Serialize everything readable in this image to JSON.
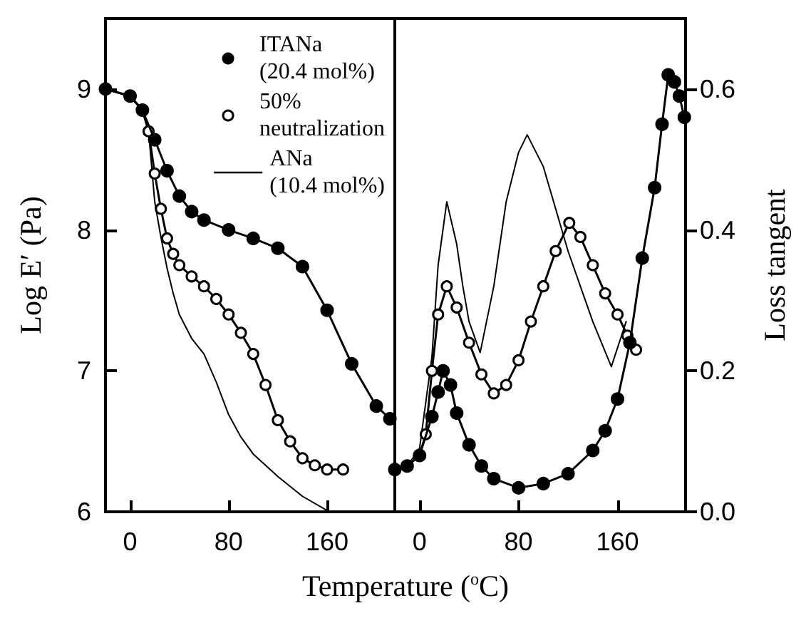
{
  "chart_data": [
    {
      "type": "line",
      "xlabel": "Temperature ($^{o}$C)",
      "ylabel": "Log E′ (Pa)",
      "xlim": [
        -20,
        215
      ],
      "xticks": [
        0,
        80,
        160
      ],
      "ylim": [
        6,
        9.5
      ],
      "yticks": [
        6,
        7,
        8,
        9
      ],
      "legend": "top right",
      "grid": false,
      "series": [
        {
          "name": "ITANa\n(20.4 mol%)",
          "color": "#000000",
          "marker": "circle",
          "x": [
            -20,
            0,
            10,
            20,
            30,
            40,
            50,
            60,
            80,
            100,
            120,
            140,
            160,
            180,
            200,
            211
          ],
          "values": [
            9.0,
            8.95,
            8.85,
            8.64,
            8.42,
            8.24,
            8.13,
            8.07,
            8.0,
            7.94,
            7.87,
            7.74,
            7.43,
            7.05,
            6.75,
            6.66
          ]
        },
        {
          "name": "50%\nneutralization",
          "color": "#ffffff",
          "marker": "circle",
          "x": [
            -20,
            0,
            10,
            15,
            20,
            25,
            30,
            35,
            40,
            50,
            60,
            70,
            80,
            90,
            100,
            110,
            120,
            130,
            140,
            150,
            160,
            173
          ],
          "values": [
            9.0,
            8.95,
            8.85,
            8.7,
            8.4,
            8.15,
            7.94,
            7.83,
            7.75,
            7.67,
            7.6,
            7.51,
            7.4,
            7.27,
            7.12,
            6.9,
            6.65,
            6.5,
            6.38,
            6.33,
            6.3,
            6.3
          ]
        },
        {
          "name": "ANa\n(10.4 mol%)",
          "color": "#000000",
          "marker": "none",
          "x": [
            -20,
            0,
            10,
            15,
            20,
            25,
            30,
            35,
            40,
            50,
            60,
            70,
            80,
            90,
            100,
            120,
            140,
            160
          ],
          "values": [
            9.0,
            8.95,
            8.85,
            8.7,
            8.2,
            7.95,
            7.73,
            7.55,
            7.4,
            7.23,
            7.12,
            6.92,
            6.69,
            6.53,
            6.41,
            6.25,
            6.11,
            6.01
          ]
        }
      ]
    },
    {
      "type": "line",
      "y2label": "Loss tangent",
      "xlim": [
        -20,
        215
      ],
      "xticks": [
        0,
        80,
        160
      ],
      "y2lim": [
        0,
        0.7
      ],
      "y2ticks": [
        {
          "value": 0,
          "label": "0.0"
        },
        {
          "value": 0.2,
          "label": "0.2"
        },
        {
          "value": 0.4,
          "label": "0.4"
        },
        {
          "value": 0.6,
          "label": "0.6"
        }
      ],
      "tick_labels": "x",
      "legend": false,
      "grid": false,
      "series": [
        {
          "color": "#000000",
          "marker": "circle",
          "axis": "y2",
          "x": [
            -20,
            -10,
            0,
            10,
            15,
            19,
            25,
            30,
            40,
            50,
            60,
            80,
            100,
            120,
            140,
            150,
            160,
            170,
            180,
            190,
            196,
            201,
            206,
            210,
            214
          ],
          "values": [
            0.06,
            0.065,
            0.08,
            0.135,
            0.17,
            0.2,
            0.18,
            0.14,
            0.095,
            0.065,
            0.047,
            0.034,
            0.04,
            0.054,
            0.087,
            0.115,
            0.16,
            0.24,
            0.36,
            0.46,
            0.55,
            0.62,
            0.61,
            0.59,
            0.56
          ]
        },
        {
          "color": "#ffffff",
          "marker": "circle",
          "axis": "y2",
          "x": [
            -20,
            -10,
            0,
            5,
            10,
            15,
            22,
            30,
            40,
            50,
            60,
            70,
            80,
            90,
            100,
            110,
            121,
            130,
            140,
            150,
            160,
            168,
            175
          ],
          "values": [
            0.06,
            0.065,
            0.08,
            0.11,
            0.2,
            0.28,
            0.32,
            0.29,
            0.24,
            0.195,
            0.168,
            0.18,
            0.215,
            0.27,
            0.32,
            0.37,
            0.41,
            0.39,
            0.35,
            0.31,
            0.28,
            0.25,
            0.23
          ]
        },
        {
          "color": "#000000",
          "marker": "none",
          "axis": "y2",
          "x": [
            -20,
            -10,
            0,
            10,
            15,
            22,
            30,
            35,
            40,
            49,
            60,
            70,
            80,
            87,
            100,
            120,
            140,
            155,
            167
          ],
          "values": [
            0.06,
            0.065,
            0.09,
            0.22,
            0.35,
            0.44,
            0.38,
            0.32,
            0.27,
            0.226,
            0.32,
            0.44,
            0.51,
            0.535,
            0.49,
            0.37,
            0.27,
            0.206,
            0.27
          ]
        }
      ]
    }
  ]
}
